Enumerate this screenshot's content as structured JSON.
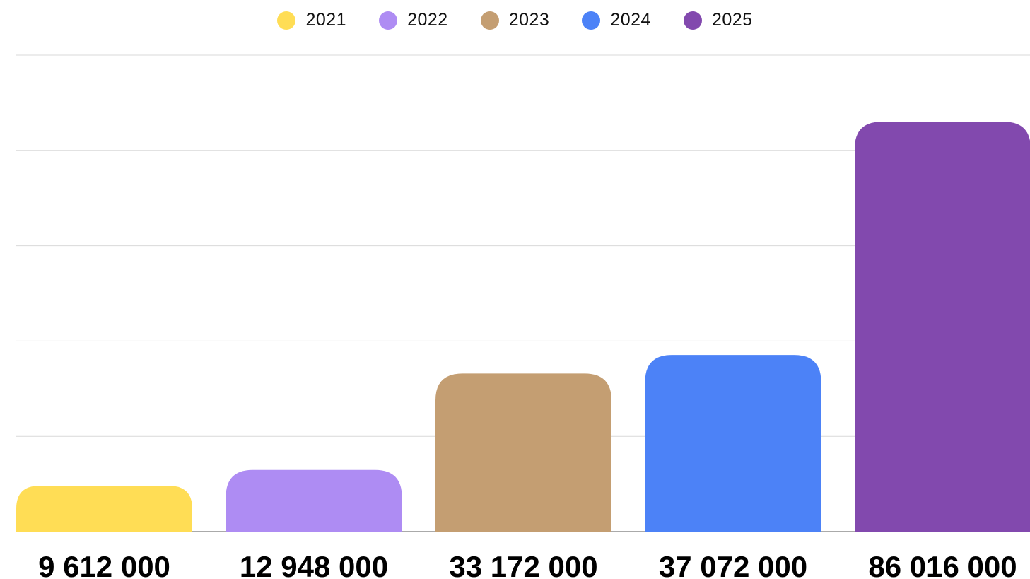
{
  "chart_data": {
    "type": "bar",
    "categories": [
      "2021",
      "2022",
      "2023",
      "2024",
      "2025"
    ],
    "values": [
      9612000,
      12948000,
      33172000,
      37072000,
      86016000
    ],
    "value_labels": [
      "9 612 000",
      "12 948 000",
      "33 172 000",
      "37 072 000",
      "86 016 000"
    ],
    "colors": [
      "#FFDD55",
      "#AE8CF3",
      "#C49E72",
      "#4C82F7",
      "#8249AE"
    ],
    "title": "",
    "xlabel": "",
    "ylabel": "",
    "ylim": [
      0,
      100000000
    ],
    "grid": true,
    "legend_position": "top-center",
    "gridline_color": "#D9D9D9",
    "axis_color": "#555555"
  }
}
